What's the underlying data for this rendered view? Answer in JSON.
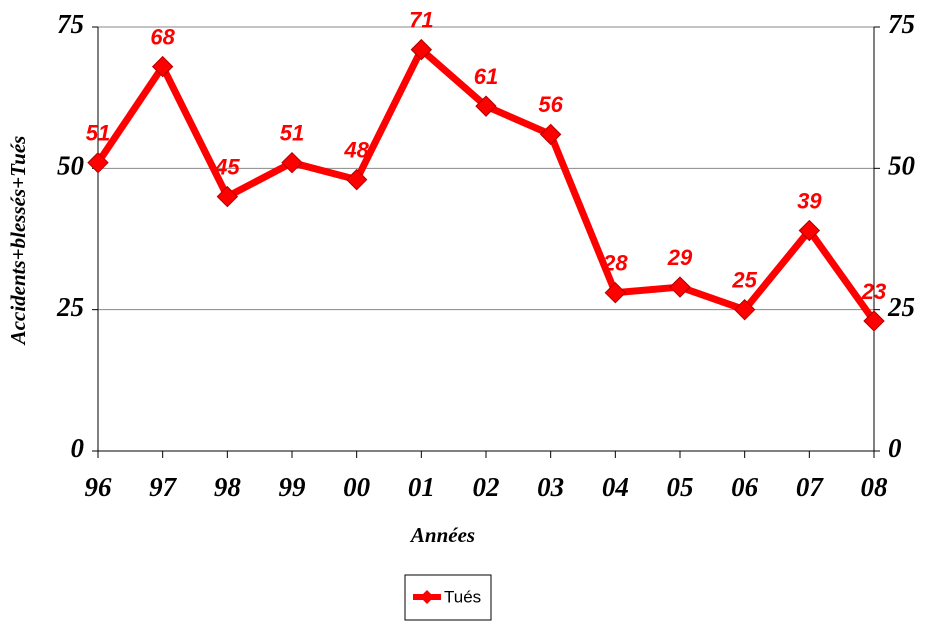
{
  "chart_data": {
    "type": "line",
    "y_label": "Accidents+blessés+Tués",
    "x_label": "Années",
    "categories": [
      "96",
      "97",
      "98",
      "99",
      "00",
      "01",
      "02",
      "03",
      "04",
      "05",
      "06",
      "07",
      "08"
    ],
    "series": [
      {
        "name": "Tués",
        "color": "#ff0000",
        "values": [
          51,
          68,
          45,
          51,
          48,
          71,
          61,
          56,
          28,
          29,
          25,
          39,
          23
        ]
      }
    ],
    "ylim": [
      0,
      75
    ],
    "yticks": [
      0,
      25,
      50,
      75
    ],
    "y2lim": [
      0,
      75
    ],
    "y2ticks": [
      0,
      25,
      50,
      75
    ],
    "grid": true,
    "legend": "bottom"
  }
}
